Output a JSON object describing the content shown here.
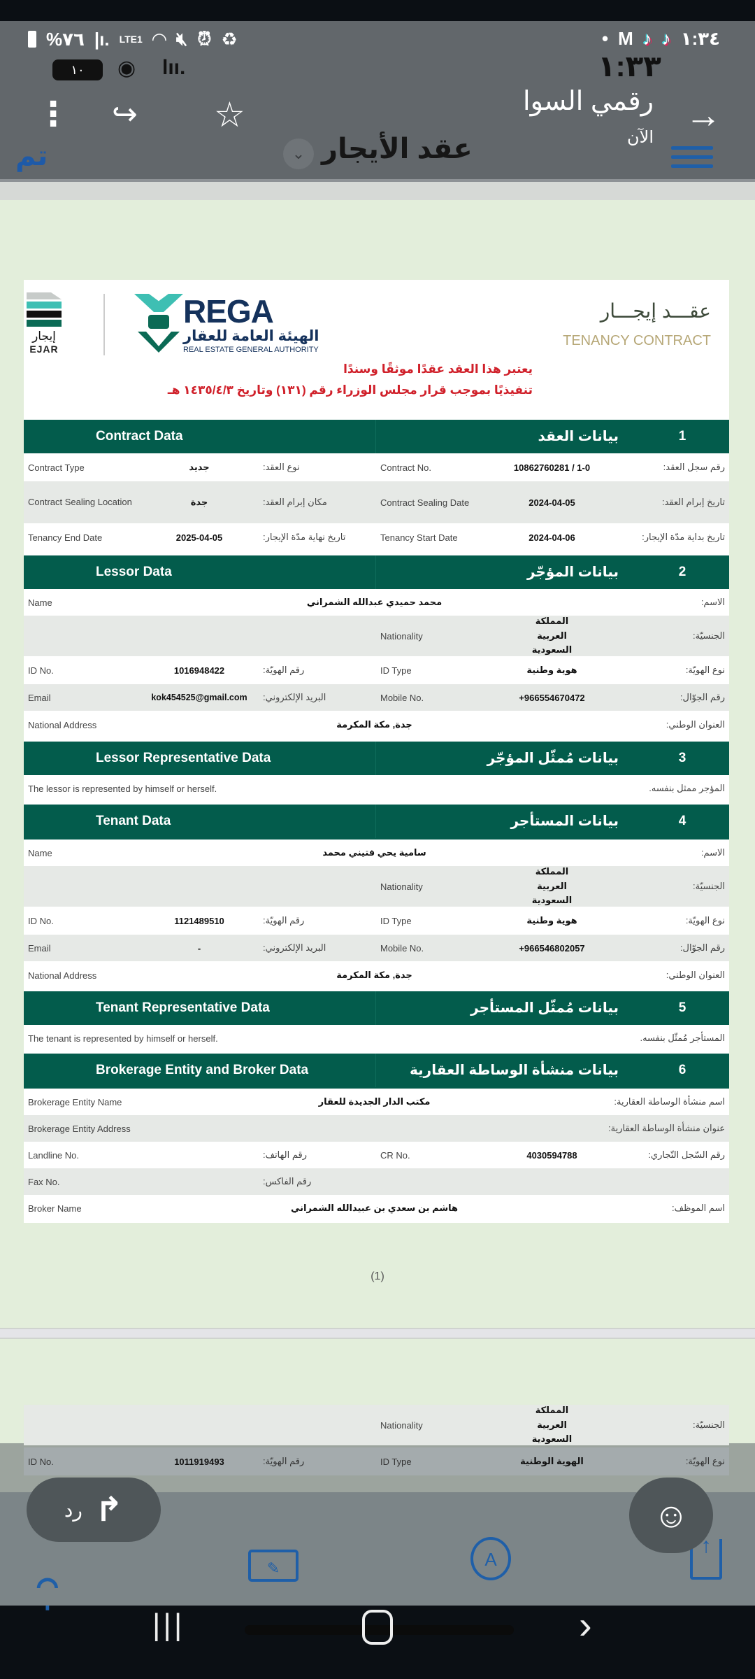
{
  "status_bar": {
    "battery": "%٧٦",
    "network": "LTE1",
    "time": "١:٣٤",
    "dot": "•",
    "app_m": "M"
  },
  "notification": {
    "battery_level": "١٠",
    "time": "١:٣٣",
    "sender": "رقمي السوا",
    "when": "الآن"
  },
  "toolbar": {
    "done": "تم",
    "title": "عقد الأيجار"
  },
  "doc_header": {
    "ejar_ar": "إيجار",
    "ejar_en": "EJAR",
    "rega_en": "REGA",
    "rega_ar": "الهيئة العامة للعقار",
    "rega_sub": "REAL ESTATE GENERAL AUTHORITY",
    "title_ar": "عقـــد إيجـــار",
    "title_en": "TENANCY CONTRACT",
    "notice_1": "يعتبر هذا العقد عقدًا موثقًا وسندًا",
    "notice_2": "تنفيذيًا بموجب قرار مجلس الوزراء رقم (١٣١) وتاريخ ١٤٣٥/٤/٣ هـ"
  },
  "sections": [
    {
      "num": "1",
      "en": "Contract Data",
      "ar": "بيانات العقد",
      "rows": [
        {
          "left_en": "Contract Type",
          "left_value": "جديد",
          "left_ar": "نوع العقد:",
          "right_en": "Contract No.",
          "right_value": "10862760281 / 1-0",
          "right_ar": "رقم سجل العقد:"
        },
        {
          "left_en": "Contract Sealing Location",
          "left_value": "جدة",
          "left_ar": "مكان إبرام العقد:",
          "right_en": "Contract Sealing Date",
          "right_value": "2024-04-05",
          "right_ar": "تاريخ إبرام العقد:"
        },
        {
          "left_en": "Tenancy End Date",
          "left_value": "2025-04-05",
          "left_ar": "تاريخ نهاية مدّة الإيجار:",
          "right_en": "Tenancy Start Date",
          "right_value": "2024-04-06",
          "right_ar": "تاريخ بداية مدّة الإيجار:"
        }
      ]
    },
    {
      "num": "2",
      "en": "Lessor Data",
      "ar": "بيانات المؤجّر",
      "name": {
        "en": "Name",
        "value": "محمد حميدي عبدالله الشمراني",
        "ar": "الاسم:"
      },
      "nationality": {
        "en": "Nationality",
        "value": "المملكة العربية السعودية",
        "ar": "الجنسيّة:"
      },
      "id": {
        "left_en": "ID No.",
        "left_value": "1016948422",
        "left_ar": "رقم الهويّة:",
        "right_en": "ID Type",
        "right_value": "هوية وطنية",
        "right_ar": "نوع الهويّة:"
      },
      "contact": {
        "left_en": "Email",
        "left_value": "kok454525@gmail.com",
        "left_ar": "البريد الإلكتروني:",
        "right_en": "Mobile No.",
        "right_value": "+966554670472",
        "right_ar": "رقم الجوّال:"
      },
      "address": {
        "en": "National Address",
        "value": "جدة, مكة المكرمة",
        "ar": "العنوان الوطني:"
      }
    },
    {
      "num": "3",
      "en": "Lessor Representative Data",
      "ar": "بيانات مُمثّل المؤجّر",
      "note": {
        "en": "The lessor is represented by himself or herself.",
        "ar": "المؤجر ممثل بنفسه."
      }
    },
    {
      "num": "4",
      "en": "Tenant Data",
      "ar": "بيانات المستأجر",
      "name": {
        "en": "Name",
        "value": "سامية يحي فتيني محمد",
        "ar": "الاسم:"
      },
      "nationality": {
        "en": "Nationality",
        "value": "المملكة العربية السعودية",
        "ar": "الجنسيّة:"
      },
      "id": {
        "left_en": "ID No.",
        "left_value": "1121489510",
        "left_ar": "رقم الهويّة:",
        "right_en": "ID Type",
        "right_value": "هوية وطنية",
        "right_ar": "نوع الهويّة:"
      },
      "contact": {
        "left_en": "Email",
        "left_value": "-",
        "left_ar": "البريد الإلكتروني:",
        "right_en": "Mobile No.",
        "right_value": "+966546802057",
        "right_ar": "رقم الجوّال:"
      },
      "address": {
        "en": "National Address",
        "value": "جدة, مكة المكرمة",
        "ar": "العنوان الوطني:"
      }
    },
    {
      "num": "5",
      "en": "Tenant Representative Data",
      "ar": "بيانات مُمثّل المستأجر",
      "note": {
        "en": "The tenant is represented by himself or herself.",
        "ar": "المستأجر مُمثّل بنفسه."
      }
    },
    {
      "num": "6",
      "en": "Brokerage Entity and Broker Data",
      "ar": "بيانات منشأة الوساطة العقارية",
      "entity_name": {
        "en": "Brokerage Entity Name",
        "value": "مكتب الدار الجديدة للعقار",
        "ar": "اسم منشأة الوساطة العقارية:"
      },
      "entity_address": {
        "en": "Brokerage Entity Address",
        "ar": "عنوان منشأة الوساطة العقارية:"
      },
      "landline": {
        "left_en": "Landline No.",
        "left_ar": "رقم الهاتف:",
        "right_en": "CR No.",
        "right_value": "4030594788",
        "right_ar": "رقم السّجل التّجاري:"
      },
      "fax": {
        "en": "Fax No.",
        "ar": "رقم الفاكس:"
      },
      "broker": {
        "en": "Broker Name",
        "value": "هاشم بن سعدي بن عبيدالله الشمراني",
        "ar": "اسم الموظف:"
      }
    }
  ],
  "page_number": "(1)",
  "page2": {
    "nationality": {
      "en": "Nationality",
      "value": "المملكة العربية السعودية",
      "ar": "الجنسيّة:"
    },
    "id": {
      "left_en": "ID No.",
      "left_value": "1011919493",
      "left_ar": "رقم الهويّة:",
      "right_en": "ID Type",
      "right_value": "الهوية الوطنية",
      "right_ar": "نوع الهويّة:"
    }
  },
  "reply": {
    "label": "رد"
  },
  "colors": {
    "header_green": "#035c4c",
    "notice_red": "#d0202a",
    "accent_blue": "#1f5fa8"
  }
}
